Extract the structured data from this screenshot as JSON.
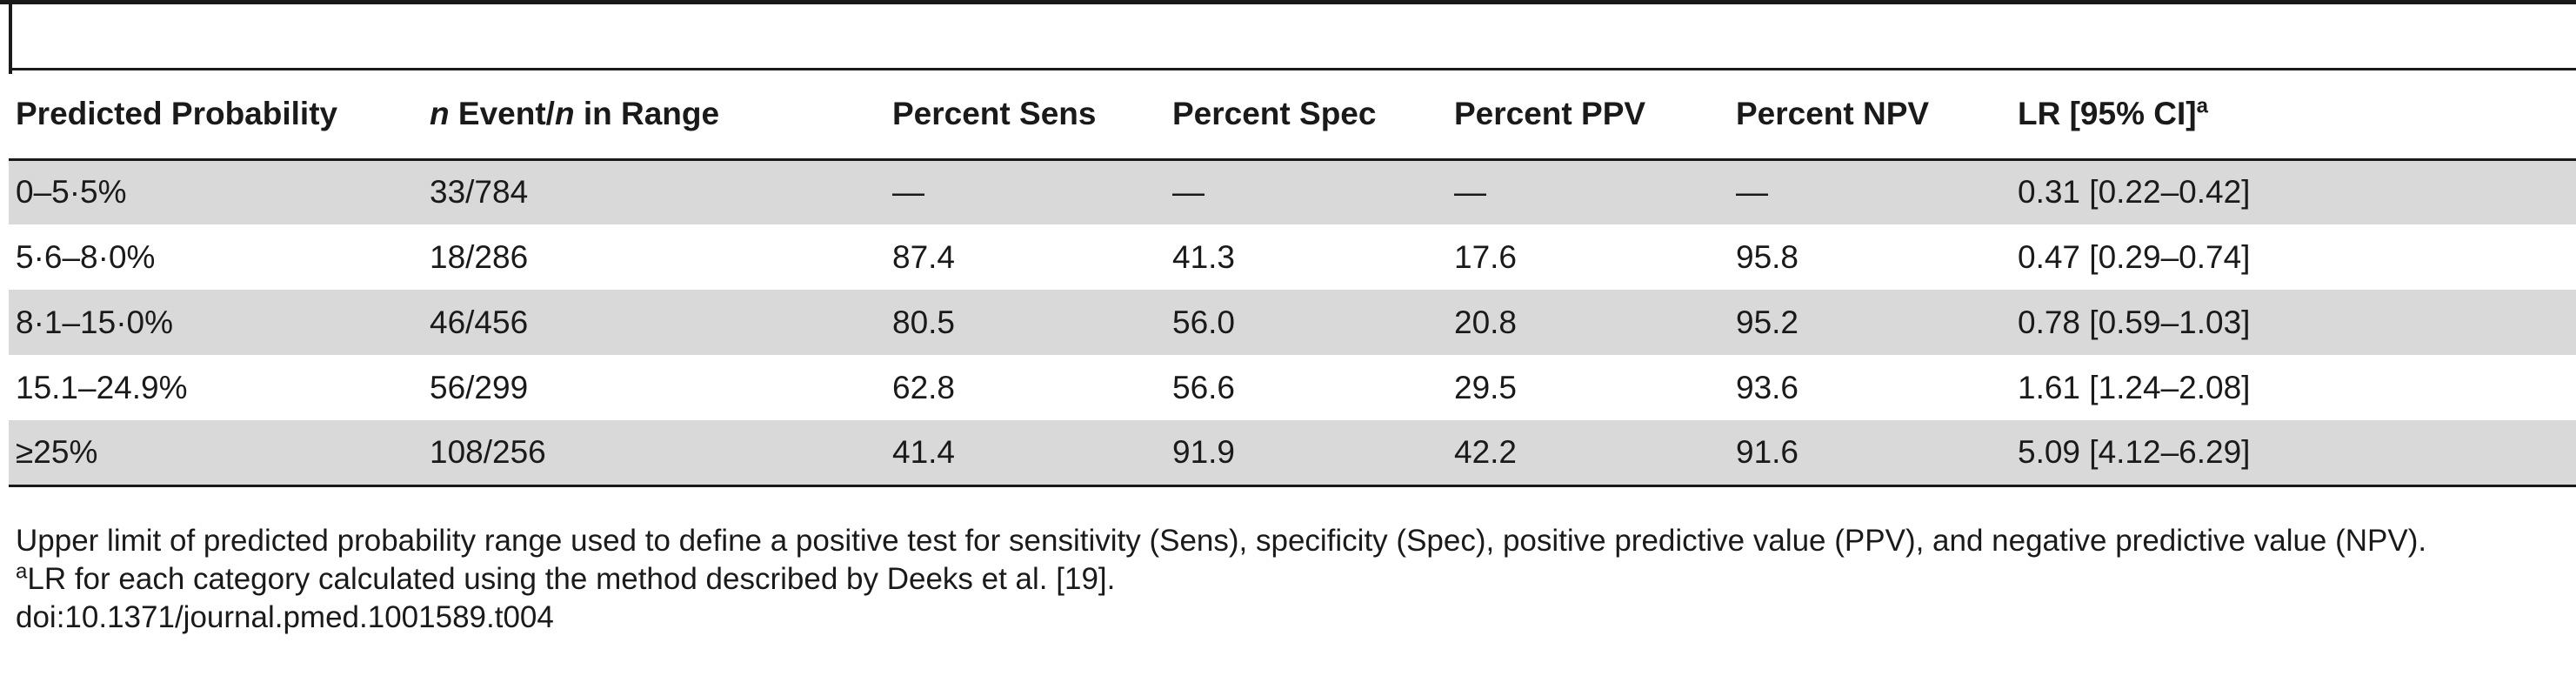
{
  "table": {
    "headers": {
      "col1": "Predicted Probability",
      "col2_n1": "n",
      "col2_mid": " Event/",
      "col2_n2": "n",
      "col2_tail": " in Range",
      "col3": "Percent Sens",
      "col4": "Percent Spec",
      "col5": "Percent PPV",
      "col6": "Percent NPV",
      "col7": "LR [95% CI]",
      "col7_sup": "a"
    },
    "rows": [
      [
        "0–5·5%",
        "33/784",
        "—",
        "—",
        "—",
        "—",
        "0.31 [0.22–0.42]"
      ],
      [
        "5·6–8·0%",
        "18/286",
        "87.4",
        "41.3",
        "17.6",
        "95.8",
        "0.47 [0.29–0.74]"
      ],
      [
        "8·1–15·0%",
        "46/456",
        "80.5",
        "56.0",
        "20.8",
        "95.2",
        "0.78 [0.59–1.03]"
      ],
      [
        "15.1–24.9%",
        "56/299",
        "62.8",
        "56.6",
        "29.5",
        "93.6",
        "1.61 [1.24–2.08]"
      ],
      [
        "≥25%",
        "108/256",
        "41.4",
        "91.9",
        "42.2",
        "91.6",
        "5.09 [4.12–6.29]"
      ]
    ]
  },
  "notes": {
    "note1": "Upper limit of predicted probability range used to define a positive test for sensitivity (Sens), specificity (Spec), positive predictive value (PPV), and negative predictive value (NPV).",
    "note2_sup": "a",
    "note2": "LR for each category calculated using the method described by Deeks et al. [19].",
    "doi": "doi:10.1371/journal.pmed.1001589.t004"
  },
  "colors": {
    "shaded_row": "#d9d9d9",
    "rule": "#1a1a1a"
  }
}
